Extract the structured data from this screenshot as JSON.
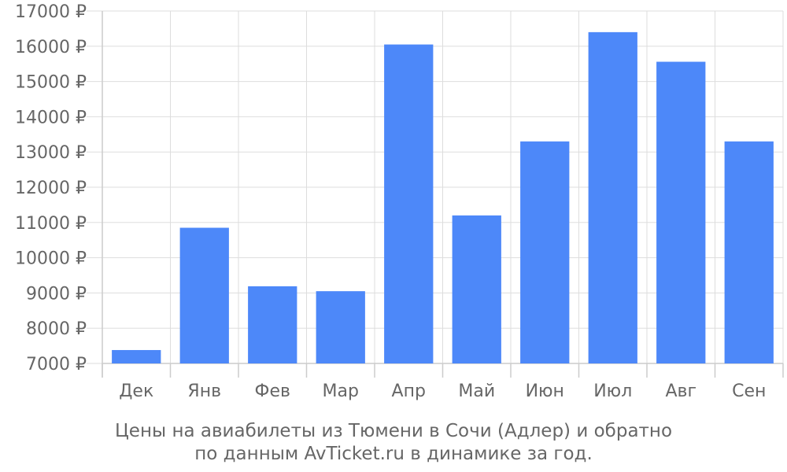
{
  "chart_data": {
    "type": "bar",
    "categories": [
      "Дек",
      "Янв",
      "Фев",
      "Мар",
      "Апр",
      "Май",
      "Июн",
      "Июл",
      "Авг",
      "Сен"
    ],
    "values": [
      7380,
      10850,
      9190,
      9050,
      16050,
      11200,
      13300,
      16400,
      15560,
      13300
    ],
    "ylim": [
      7000,
      17000
    ],
    "yticks": [
      7000,
      8000,
      9000,
      10000,
      11000,
      12000,
      13000,
      14000,
      15000,
      16000,
      17000
    ],
    "ytick_labels": [
      "7000 ₽",
      "8000 ₽",
      "9000 ₽",
      "10000 ₽",
      "11000 ₽",
      "12000 ₽",
      "13000 ₽",
      "14000 ₽",
      "15000 ₽",
      "16000 ₽",
      "17000 ₽"
    ],
    "grid": true,
    "bar_color": "#4d88f9",
    "caption": [
      "Цены на авиабилеты из Тюмени в Сочи (Адлер) и обратно",
      "по данным AvTicket.ru в динамике за год."
    ]
  }
}
